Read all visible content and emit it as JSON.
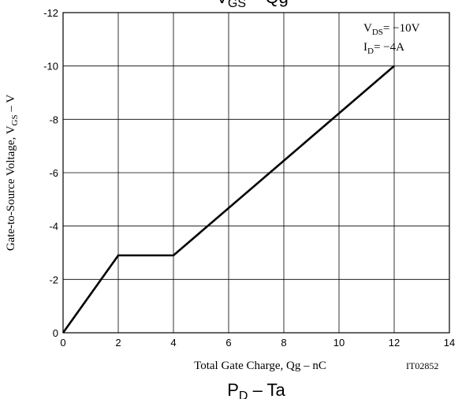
{
  "chart_data": {
    "type": "line",
    "title": {
      "main": "V",
      "sub": "GS",
      "rest": " – Qg"
    },
    "next_title": {
      "main": "P",
      "sub": "D",
      "rest": " – Ta"
    },
    "x_label": "Total Gate Charge, Qg  –  nC",
    "y_label": {
      "main": "Gate-to-Source Voltage, V",
      "sub": "GS",
      "rest": "  –  V"
    },
    "annotations": [
      {
        "main": "V",
        "sub": "DS",
        "rest": "= −10V"
      },
      {
        "main": "I",
        "sub": "D",
        "rest": "= −4A"
      }
    ],
    "figure_id": "IT02852",
    "series": [
      {
        "color": "#000000",
        "x": [
          0,
          2,
          4,
          12
        ],
        "values": [
          0,
          -2.9,
          -2.9,
          -10
        ]
      }
    ],
    "xlim": [
      0,
      14
    ],
    "xticks": [
      0,
      2,
      4,
      6,
      8,
      10,
      12,
      14
    ],
    "ylim": [
      0,
      -12
    ],
    "yticks": [
      0,
      -2,
      -4,
      -6,
      -8,
      -10,
      -12
    ],
    "grid": true
  }
}
